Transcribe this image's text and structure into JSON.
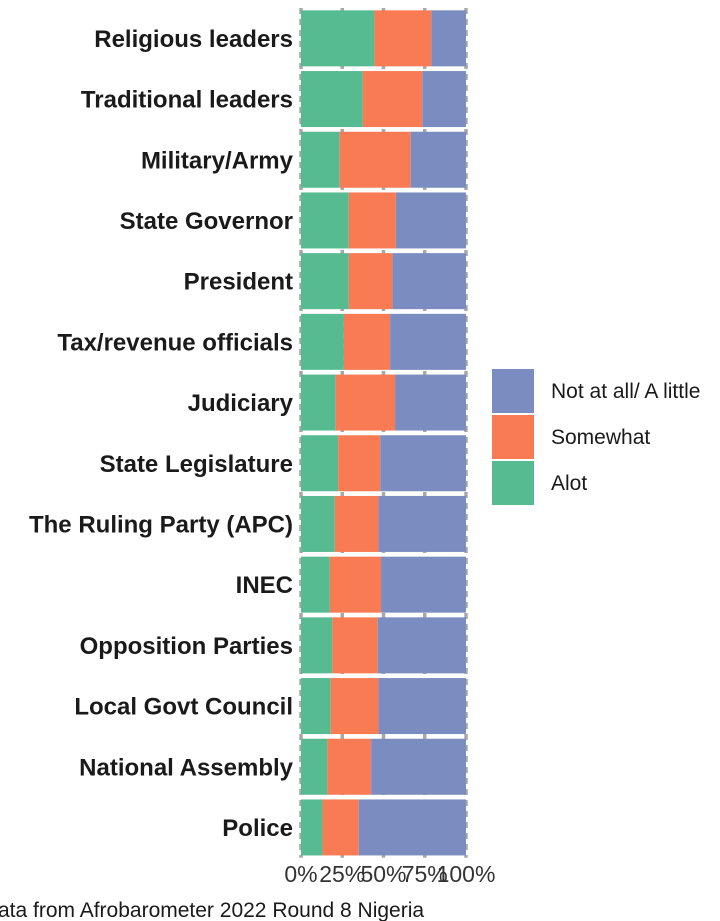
{
  "chart_data": {
    "type": "bar",
    "orientation": "horizontal",
    "stacked": "percent",
    "categories": [
      "Religious leaders",
      "Traditional leaders",
      "Military/Army",
      "State Governor",
      "President",
      "Tax/revenue officials",
      "Judiciary",
      "State Legislature",
      "The Ruling Party (APC)",
      "INEC",
      "Opposition Parties",
      "Local Govt Council",
      "National Assembly",
      "Police"
    ],
    "series": [
      {
        "name": "Alot",
        "color": "#57BB92",
        "values": [
          44.5,
          37.5,
          23.5,
          29,
          29,
          26,
          21,
          22.5,
          20.5,
          17.5,
          19,
          18,
          16,
          13
        ]
      },
      {
        "name": "Somewhat",
        "color": "#F97B53",
        "values": [
          34.5,
          36,
          43,
          28.5,
          26.5,
          28,
          36,
          25.5,
          26.5,
          31,
          27.5,
          29,
          26.5,
          22
        ]
      },
      {
        "name": "Not at all/ A little",
        "color": "#7B8DC0",
        "values": [
          21,
          26.5,
          33.5,
          42.5,
          44.5,
          46,
          43,
          52,
          53,
          51.5,
          53.5,
          53,
          57.5,
          65
        ]
      }
    ],
    "x_ticks": [
      "0%",
      "25%",
      "50%",
      "75%",
      "100%"
    ],
    "xlim": [
      0,
      100
    ],
    "legend": {
      "position": "right",
      "order": [
        "Not at all/ A little",
        "Somewhat",
        "Alot"
      ]
    },
    "grid": true,
    "caption": "ata from Afrobarometer 2022 Round 8 Nigeria"
  }
}
